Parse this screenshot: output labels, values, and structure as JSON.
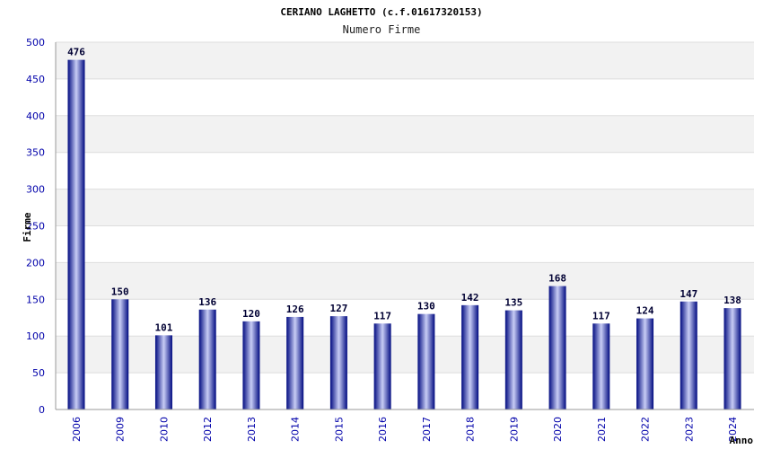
{
  "chart_data": {
    "type": "bar",
    "title": "CERIANO LAGHETTO (c.f.01617320153)",
    "subtitle": "Numero Firme",
    "xlabel": "Anno",
    "ylabel": "Firme",
    "categories": [
      "2006",
      "2009",
      "2010",
      "2012",
      "2013",
      "2014",
      "2015",
      "2016",
      "2017",
      "2018",
      "2019",
      "2020",
      "2021",
      "2022",
      "2023",
      "2024"
    ],
    "values": [
      476,
      150,
      101,
      136,
      120,
      126,
      127,
      117,
      130,
      142,
      135,
      168,
      117,
      124,
      147,
      138
    ],
    "ylim": [
      0,
      500
    ],
    "yticks": [
      0,
      50,
      100,
      150,
      200,
      250,
      300,
      350,
      400,
      450,
      500
    ],
    "grid": true,
    "colors": {
      "bar_edge": "#000a80",
      "bar_center": "#c8cdf5",
      "band": "#f2f2f2",
      "tick_text": "#0000aa"
    }
  }
}
